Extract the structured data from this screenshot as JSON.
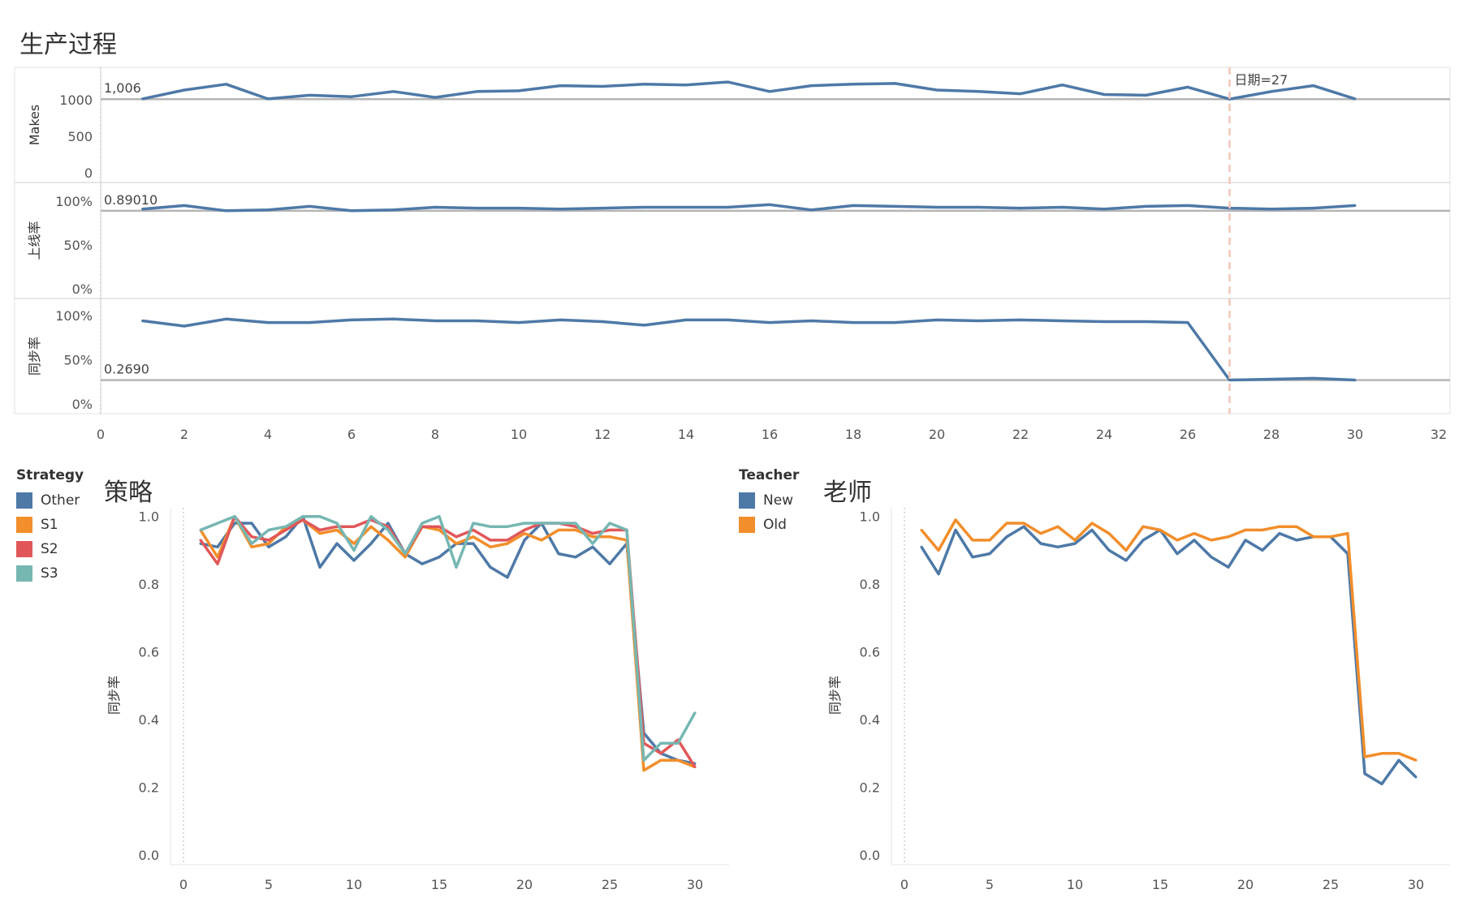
{
  "header": {
    "title": "生产过程"
  },
  "colors": {
    "primary": "#4e79a7",
    "orange": "#f28e2b",
    "red": "#e15759",
    "teal": "#76b7b2",
    "refline": "#b5b5b5",
    "marker": "#f3c6b8"
  },
  "chart_data": [
    {
      "type": "line",
      "title": "生产过程",
      "xlim": [
        0,
        32
      ],
      "xticks": [
        0,
        2,
        4,
        6,
        8,
        10,
        12,
        14,
        16,
        18,
        20,
        22,
        24,
        26,
        28,
        30,
        32
      ],
      "marker_label": "日期=27",
      "marker_x": 27,
      "x": [
        1,
        2,
        3,
        4,
        5,
        6,
        7,
        8,
        9,
        10,
        11,
        12,
        13,
        14,
        15,
        16,
        17,
        18,
        19,
        20,
        21,
        22,
        23,
        24,
        25,
        26,
        27,
        28,
        29,
        30
      ],
      "panels": [
        {
          "ylabel": "Makes",
          "ylim": [
            0,
            1330
          ],
          "yticks": [
            0,
            500,
            1000
          ],
          "yticklabels": [
            "0",
            "500",
            "1000"
          ],
          "ref_value": 1006,
          "ref_label": "1,006",
          "values": [
            1010,
            1130,
            1210,
            1010,
            1060,
            1040,
            1110,
            1030,
            1110,
            1120,
            1190,
            1180,
            1210,
            1200,
            1240,
            1110,
            1190,
            1210,
            1220,
            1130,
            1110,
            1080,
            1200,
            1070,
            1060,
            1170,
            1006,
            1110,
            1190,
            1010
          ]
        },
        {
          "ylabel": "上线率",
          "ylim": [
            0,
            1.12
          ],
          "yticks": [
            0,
            0.5,
            1.0
          ],
          "yticklabels": [
            "0%",
            "50%",
            "100%"
          ],
          "ref_value": 0.8901,
          "ref_label": "0.89010",
          "values": [
            0.91,
            0.95,
            0.89,
            0.9,
            0.94,
            0.89,
            0.9,
            0.93,
            0.92,
            0.92,
            0.91,
            0.92,
            0.93,
            0.93,
            0.93,
            0.96,
            0.9,
            0.95,
            0.94,
            0.93,
            0.93,
            0.92,
            0.93,
            0.91,
            0.94,
            0.95,
            0.92,
            0.91,
            0.92,
            0.95
          ]
        },
        {
          "ylabel": "同步率",
          "ylim": [
            0,
            1.1
          ],
          "yticks": [
            0,
            0.5,
            1.0
          ],
          "yticklabels": [
            "0%",
            "50%",
            "100%"
          ],
          "ref_value": 0.269,
          "ref_label": "0.2690",
          "values": [
            0.94,
            0.88,
            0.96,
            0.92,
            0.92,
            0.95,
            0.96,
            0.94,
            0.94,
            0.92,
            0.95,
            0.93,
            0.89,
            0.95,
            0.95,
            0.92,
            0.94,
            0.92,
            0.92,
            0.95,
            0.94,
            0.95,
            0.94,
            0.93,
            0.93,
            0.92,
            0.27,
            0.28,
            0.29,
            0.27
          ]
        }
      ]
    },
    {
      "type": "line",
      "title": "策略",
      "ylabel": "同步率",
      "legend_title": "Strategy",
      "xlim": [
        0,
        31
      ],
      "ylim": [
        0,
        1.04
      ],
      "xticks": [
        0,
        5,
        10,
        15,
        20,
        25,
        30
      ],
      "yticks": [
        0.0,
        0.2,
        0.4,
        0.6,
        0.8,
        1.0
      ],
      "yticklabels": [
        "0.0",
        "0.2",
        "0.4",
        "0.6",
        "0.8",
        "1.0"
      ],
      "x": [
        1,
        2,
        3,
        4,
        5,
        6,
        7,
        8,
        9,
        10,
        11,
        12,
        13,
        14,
        15,
        16,
        17,
        18,
        19,
        20,
        21,
        22,
        23,
        24,
        25,
        26,
        27,
        28,
        29,
        30
      ],
      "series": [
        {
          "name": "Other",
          "color": "#4e79a7",
          "values": [
            0.92,
            0.91,
            0.98,
            0.98,
            0.91,
            0.94,
            1.0,
            0.85,
            0.92,
            0.87,
            0.92,
            0.98,
            0.89,
            0.86,
            0.88,
            0.92,
            0.92,
            0.85,
            0.82,
            0.93,
            0.98,
            0.89,
            0.88,
            0.91,
            0.86,
            0.92,
            0.36,
            0.3,
            0.28,
            0.27
          ]
        },
        {
          "name": "S1",
          "color": "#f28e2b",
          "values": [
            0.96,
            0.88,
            1.0,
            0.91,
            0.92,
            0.97,
            0.99,
            0.95,
            0.96,
            0.92,
            0.97,
            0.93,
            0.88,
            0.97,
            0.96,
            0.92,
            0.94,
            0.91,
            0.92,
            0.95,
            0.93,
            0.96,
            0.96,
            0.94,
            0.94,
            0.93,
            0.25,
            0.28,
            0.28,
            0.26
          ]
        },
        {
          "name": "S2",
          "color": "#e15759",
          "values": [
            0.93,
            0.86,
            1.0,
            0.94,
            0.93,
            0.96,
            0.99,
            0.96,
            0.97,
            0.97,
            0.99,
            0.97,
            0.89,
            0.97,
            0.97,
            0.94,
            0.96,
            0.93,
            0.93,
            0.96,
            0.98,
            0.98,
            0.97,
            0.95,
            0.96,
            0.96,
            0.33,
            0.3,
            0.34,
            0.26
          ]
        },
        {
          "name": "S3",
          "color": "#76b7b2",
          "values": [
            0.96,
            0.98,
            1.0,
            0.92,
            0.96,
            0.97,
            1.0,
            1.0,
            0.98,
            0.9,
            1.0,
            0.96,
            0.89,
            0.98,
            1.0,
            0.85,
            0.98,
            0.97,
            0.97,
            0.98,
            0.98,
            0.98,
            0.98,
            0.92,
            0.98,
            0.96,
            0.28,
            0.33,
            0.33,
            0.42
          ]
        }
      ]
    },
    {
      "type": "line",
      "title": "老师",
      "ylabel": "同步率",
      "legend_title": "Teacher",
      "xlim": [
        0,
        31
      ],
      "ylim": [
        0,
        1.04
      ],
      "xticks": [
        0,
        5,
        10,
        15,
        20,
        25,
        30
      ],
      "yticks": [
        0.0,
        0.2,
        0.4,
        0.6,
        0.8,
        1.0
      ],
      "yticklabels": [
        "0.0",
        "0.2",
        "0.4",
        "0.6",
        "0.8",
        "1.0"
      ],
      "x": [
        1,
        2,
        3,
        4,
        5,
        6,
        7,
        8,
        9,
        10,
        11,
        12,
        13,
        14,
        15,
        16,
        17,
        18,
        19,
        20,
        21,
        22,
        23,
        24,
        25,
        26,
        27,
        28,
        29,
        30
      ],
      "series": [
        {
          "name": "New",
          "color": "#4e79a7",
          "values": [
            0.91,
            0.83,
            0.96,
            0.88,
            0.89,
            0.94,
            0.97,
            0.92,
            0.91,
            0.92,
            0.96,
            0.9,
            0.87,
            0.93,
            0.96,
            0.89,
            0.93,
            0.88,
            0.85,
            0.93,
            0.9,
            0.95,
            0.93,
            0.94,
            0.94,
            0.89,
            0.24,
            0.21,
            0.28,
            0.23
          ]
        },
        {
          "name": "Old",
          "color": "#f28e2b",
          "values": [
            0.96,
            0.9,
            0.99,
            0.93,
            0.93,
            0.98,
            0.98,
            0.95,
            0.97,
            0.93,
            0.98,
            0.95,
            0.9,
            0.97,
            0.96,
            0.93,
            0.95,
            0.93,
            0.94,
            0.96,
            0.96,
            0.97,
            0.97,
            0.94,
            0.94,
            0.95,
            0.29,
            0.3,
            0.3,
            0.28
          ]
        }
      ]
    }
  ]
}
